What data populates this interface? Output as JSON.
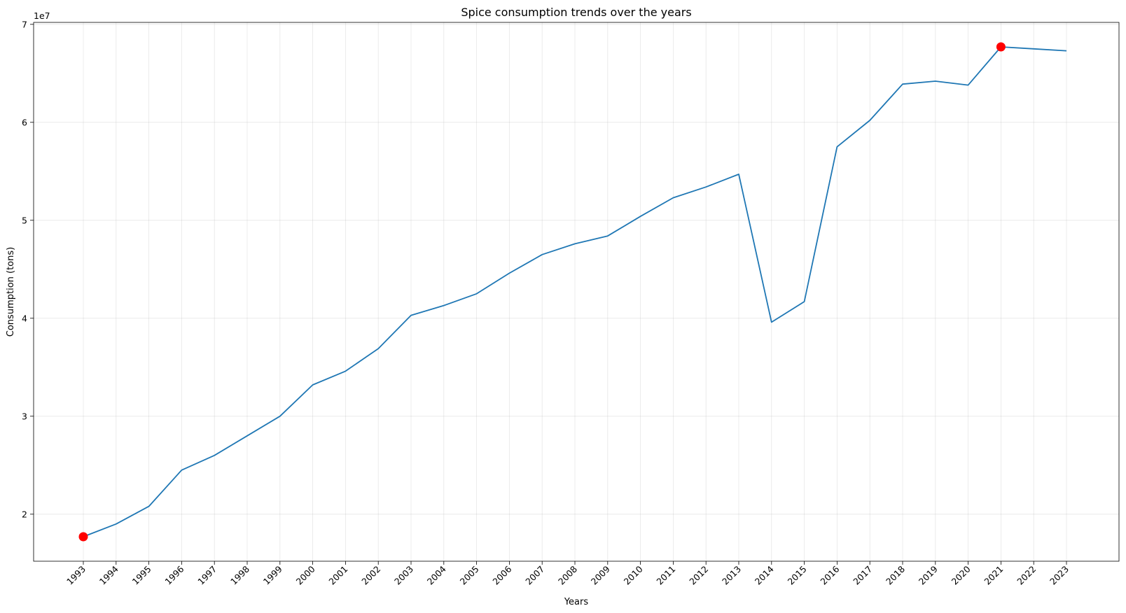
{
  "chart_data": {
    "type": "line",
    "title": "Spice consumption trends over the years",
    "xlabel": "Years",
    "ylabel": "Consumption (tons)",
    "y_offset_label": "1e7",
    "ylim": [
      15200000,
      70200000
    ],
    "yticks": [
      20000000,
      30000000,
      40000000,
      50000000,
      60000000,
      70000000
    ],
    "ytick_labels": [
      "2",
      "3",
      "4",
      "5",
      "6",
      "7"
    ],
    "x_tick_rotation": 45,
    "grid": true,
    "line_color": "#1f77b4",
    "marker_color": "#ff0000",
    "x": [
      "1993",
      "1994",
      "1995",
      "1996",
      "1997",
      "1998",
      "1999",
      "2000",
      "2001",
      "2002",
      "2003",
      "2004",
      "2005",
      "2006",
      "2007",
      "2008",
      "2009",
      "2010",
      "2011",
      "2012",
      "2013",
      "2014",
      "2015",
      "2016",
      "2017",
      "2018",
      "2019",
      "2020",
      "2021",
      "2022",
      "2023"
    ],
    "series": [
      {
        "values": [
          17700000,
          19000000,
          20800000,
          24500000,
          26000000,
          28000000,
          30000000,
          33200000,
          34600000,
          36900000,
          40300000,
          41300000,
          42500000,
          44600000,
          46500000,
          47600000,
          48400000,
          50400000,
          52300000,
          53400000,
          54700000,
          39600000,
          41700000,
          57500000,
          60200000,
          63900000,
          64200000,
          63800000,
          67700000,
          67500000,
          67300000
        ]
      }
    ],
    "highlighted_points": [
      {
        "x": "1993",
        "y": 17700000
      },
      {
        "x": "2021",
        "y": 67700000
      }
    ]
  }
}
